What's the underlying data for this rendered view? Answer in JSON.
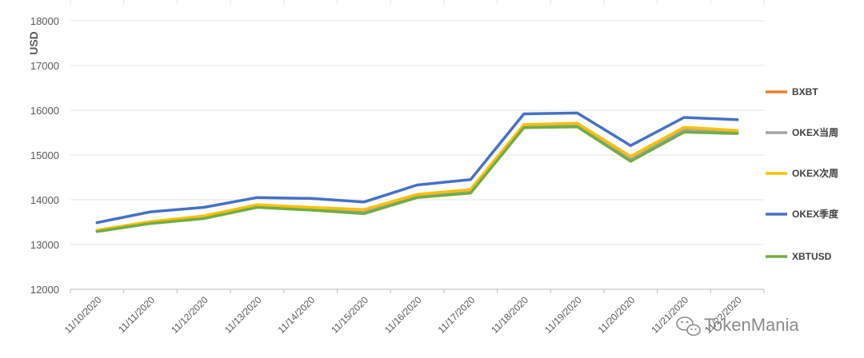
{
  "chart_data": {
    "type": "line",
    "ylabel": "USD",
    "xlabel": "",
    "ylim": [
      12000,
      18000
    ],
    "y_ticks": [
      "12000",
      "13000",
      "14000",
      "15000",
      "16000",
      "17000",
      "18000"
    ],
    "categories": [
      "11/10/2020",
      "11/11/2020",
      "11/12/2020",
      "11/13/2020",
      "11/14/2020",
      "11/15/2020",
      "11/16/2020",
      "11/17/2020",
      "11/18/2020",
      "11/19/2020",
      "11/20/2020",
      "11/21/2020",
      "11/22/2020"
    ],
    "grid": "horizontal",
    "legend_position": "right",
    "series": [
      {
        "name": "BXBT",
        "color": "#ed7d31",
        "values": [
          13300,
          13490,
          13610,
          13860,
          13800,
          13730,
          14090,
          14190,
          15650,
          15680,
          14920,
          15560,
          15510
        ]
      },
      {
        "name": "OKEX当周",
        "color": "#a5a5a5",
        "values": [
          13300,
          13480,
          13600,
          13850,
          13790,
          13720,
          14080,
          14180,
          15640,
          15670,
          14910,
          15550,
          15500
        ]
      },
      {
        "name": "OKEX次周",
        "color": "#ffc000",
        "values": [
          13320,
          13510,
          13640,
          13890,
          13830,
          13780,
          14120,
          14230,
          15680,
          15710,
          14970,
          15620,
          15550
        ]
      },
      {
        "name": "OKEX季度",
        "color": "#4472c4",
        "values": [
          13490,
          13730,
          13830,
          14050,
          14030,
          13950,
          14330,
          14450,
          15920,
          15940,
          15210,
          15840,
          15790
        ]
      },
      {
        "name": "XBTUSD",
        "color": "#70ad47",
        "values": [
          13290,
          13470,
          13580,
          13830,
          13770,
          13690,
          14050,
          14150,
          15610,
          15630,
          14860,
          15510,
          15480
        ]
      }
    ]
  },
  "watermark": {
    "text": "TokenMania",
    "icon": "wechat-icon"
  }
}
